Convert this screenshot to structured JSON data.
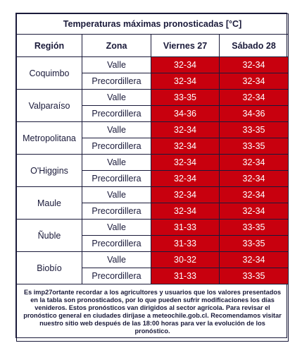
{
  "title": "Temperaturas máximas pronosticadas [°C]",
  "headers": {
    "region": "Región",
    "zone": "Zona",
    "day1": "Viernes 27",
    "day2": "Sábado 28"
  },
  "rows": [
    {
      "region": "Coquimbo",
      "zones": [
        {
          "zone": "Valle",
          "day1": "32-34",
          "day2": "32-34"
        },
        {
          "zone": "Precordillera",
          "day1": "32-34",
          "day2": "32-34"
        }
      ]
    },
    {
      "region": "Valparaíso",
      "zones": [
        {
          "zone": "Valle",
          "day1": "33-35",
          "day2": "32-34"
        },
        {
          "zone": "Precordillera",
          "day1": "34-36",
          "day2": "34-36"
        }
      ]
    },
    {
      "region": "Metropolitana",
      "zones": [
        {
          "zone": "Valle",
          "day1": "32-34",
          "day2": "33-35"
        },
        {
          "zone": "Precordillera",
          "day1": "32-34",
          "day2": "33-35"
        }
      ]
    },
    {
      "region": "O'Higgins",
      "zones": [
        {
          "zone": "Valle",
          "day1": "32-34",
          "day2": "32-34"
        },
        {
          "zone": "Precordillera",
          "day1": "32-34",
          "day2": "32-34"
        }
      ]
    },
    {
      "region": "Maule",
      "zones": [
        {
          "zone": "Valle",
          "day1": "32-34",
          "day2": "32-34"
        },
        {
          "zone": "Precordillera",
          "day1": "32-34",
          "day2": "32-34"
        }
      ]
    },
    {
      "region": "Ñuble",
      "zones": [
        {
          "zone": "Valle",
          "day1": "31-33",
          "day2": "33-35"
        },
        {
          "zone": "Precordillera",
          "day1": "31-33",
          "day2": "33-35"
        }
      ]
    },
    {
      "region": "Biobío",
      "zones": [
        {
          "zone": "Valle",
          "day1": "30-32",
          "day2": "32-34"
        },
        {
          "zone": "Precordillera",
          "day1": "31-33",
          "day2": "33-35"
        }
      ]
    }
  ],
  "note": "Es imp27ortante recordar a los agricultores y usuarios que los valores presentados en la tabla son pronosticados, por lo que pueden sufrir modificaciones los días venideros. Estos pronósticos van dirigidos al sector agrícola. Para revisar el pronóstico general en ciudades diríjase a meteochile.gob.cl. Recomendamos visitar nuestro sitio web después de las 18:00 horas para ver la evolución de los pronóstico.",
  "colors": {
    "hot": "#c8000e",
    "text": "#1a1a3a"
  }
}
